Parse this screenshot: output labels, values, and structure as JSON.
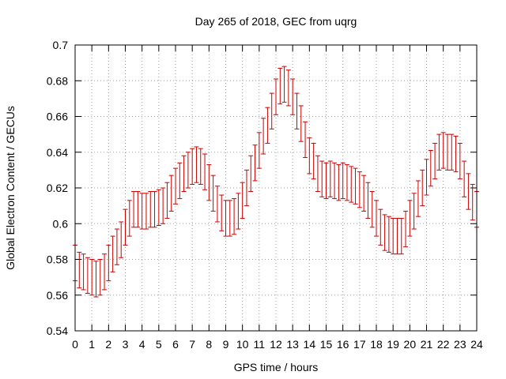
{
  "chart_data": {
    "type": "scatter",
    "title": "Day 265 of 2018, GEC from uqrg",
    "xlabel": "GPS time / hours",
    "ylabel": "Global Electron Content / GECUs",
    "xlim": [
      0,
      24
    ],
    "ylim": [
      0.54,
      0.7
    ],
    "xticks": [
      0,
      1,
      2,
      3,
      4,
      5,
      6,
      7,
      8,
      9,
      10,
      11,
      12,
      13,
      14,
      15,
      16,
      17,
      18,
      19,
      20,
      21,
      22,
      23,
      24
    ],
    "yticks": [
      0.54,
      0.56,
      0.58,
      0.6,
      0.62,
      0.64,
      0.66,
      0.68,
      0.7
    ],
    "grid": true,
    "series_color": "#cc0000",
    "series": [
      {
        "errorbar": 0.01,
        "x": [
          0,
          0.25,
          0.5,
          0.75,
          1,
          1.25,
          1.5,
          1.75,
          2,
          2.25,
          2.5,
          2.75,
          3,
          3.25,
          3.5,
          3.75,
          4,
          4.25,
          4.5,
          4.75,
          5,
          5.25,
          5.5,
          5.75,
          6,
          6.25,
          6.5,
          6.75,
          7,
          7.25,
          7.5,
          7.75,
          8,
          8.25,
          8.5,
          8.75,
          9,
          9.25,
          9.5,
          9.75,
          10,
          10.25,
          10.5,
          10.75,
          11,
          11.25,
          11.5,
          11.75,
          12,
          12.25,
          12.5,
          12.75,
          13,
          13.25,
          13.5,
          13.75,
          14,
          14.25,
          14.5,
          14.75,
          15,
          15.25,
          15.5,
          15.75,
          16,
          16.25,
          16.5,
          16.75,
          17,
          17.25,
          17.5,
          17.75,
          18,
          18.25,
          18.5,
          18.75,
          19,
          19.25,
          19.5,
          19.75,
          20,
          20.25,
          20.5,
          20.75,
          21,
          21.25,
          21.5,
          21.75,
          22,
          22.25,
          22.5,
          22.75,
          23,
          23.25,
          23.5,
          23.75,
          24
        ],
        "y": [
          0.578,
          0.574,
          0.573,
          0.571,
          0.57,
          0.569,
          0.57,
          0.573,
          0.578,
          0.583,
          0.587,
          0.591,
          0.598,
          0.603,
          0.608,
          0.608,
          0.607,
          0.607,
          0.608,
          0.608,
          0.609,
          0.61,
          0.613,
          0.617,
          0.621,
          0.624,
          0.628,
          0.63,
          0.632,
          0.633,
          0.632,
          0.629,
          0.623,
          0.617,
          0.611,
          0.606,
          0.603,
          0.603,
          0.604,
          0.607,
          0.613,
          0.62,
          0.628,
          0.634,
          0.641,
          0.649,
          0.655,
          0.663,
          0.671,
          0.677,
          0.678,
          0.676,
          0.671,
          0.663,
          0.656,
          0.647,
          0.638,
          0.635,
          0.628,
          0.625,
          0.624,
          0.625,
          0.624,
          0.623,
          0.624,
          0.623,
          0.622,
          0.621,
          0.619,
          0.617,
          0.613,
          0.608,
          0.603,
          0.598,
          0.595,
          0.594,
          0.593,
          0.593,
          0.593,
          0.597,
          0.603,
          0.607,
          0.614,
          0.62,
          0.626,
          0.631,
          0.635,
          0.64,
          0.641,
          0.64,
          0.64,
          0.639,
          0.635,
          0.625,
          0.618,
          0.612,
          0.608
        ]
      }
    ]
  }
}
